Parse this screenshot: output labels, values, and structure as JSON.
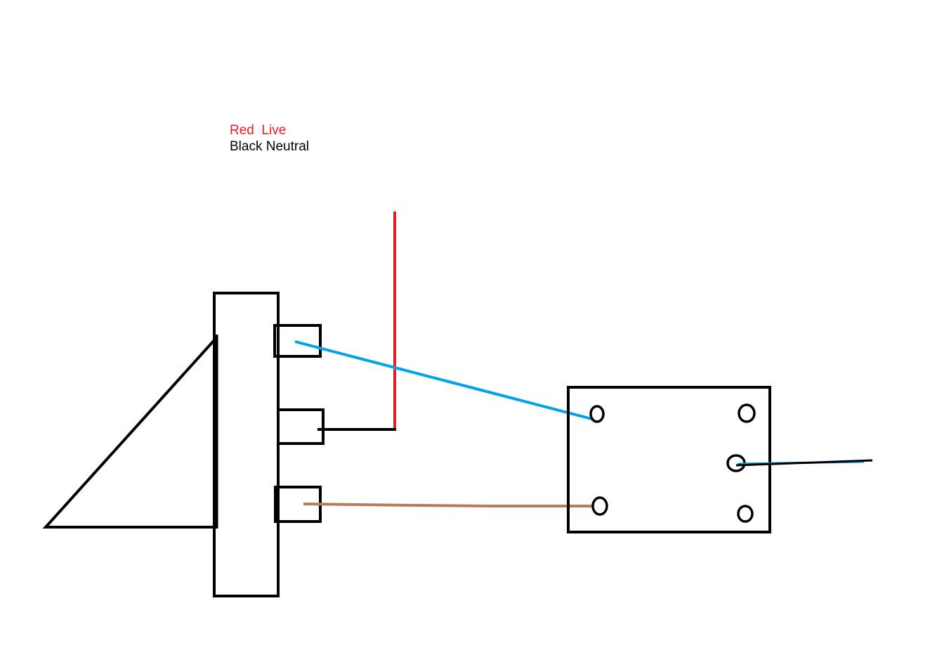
{
  "legend": {
    "live_label": "Red  Live",
    "neutral_label": "Black Neutral"
  },
  "colors": {
    "outline": "#000000",
    "live": "#ed1c24",
    "neutral": "#000000",
    "blue_wire": "#00a2e8",
    "brown_wire": "#b97a57",
    "background": "#ffffff"
  }
}
